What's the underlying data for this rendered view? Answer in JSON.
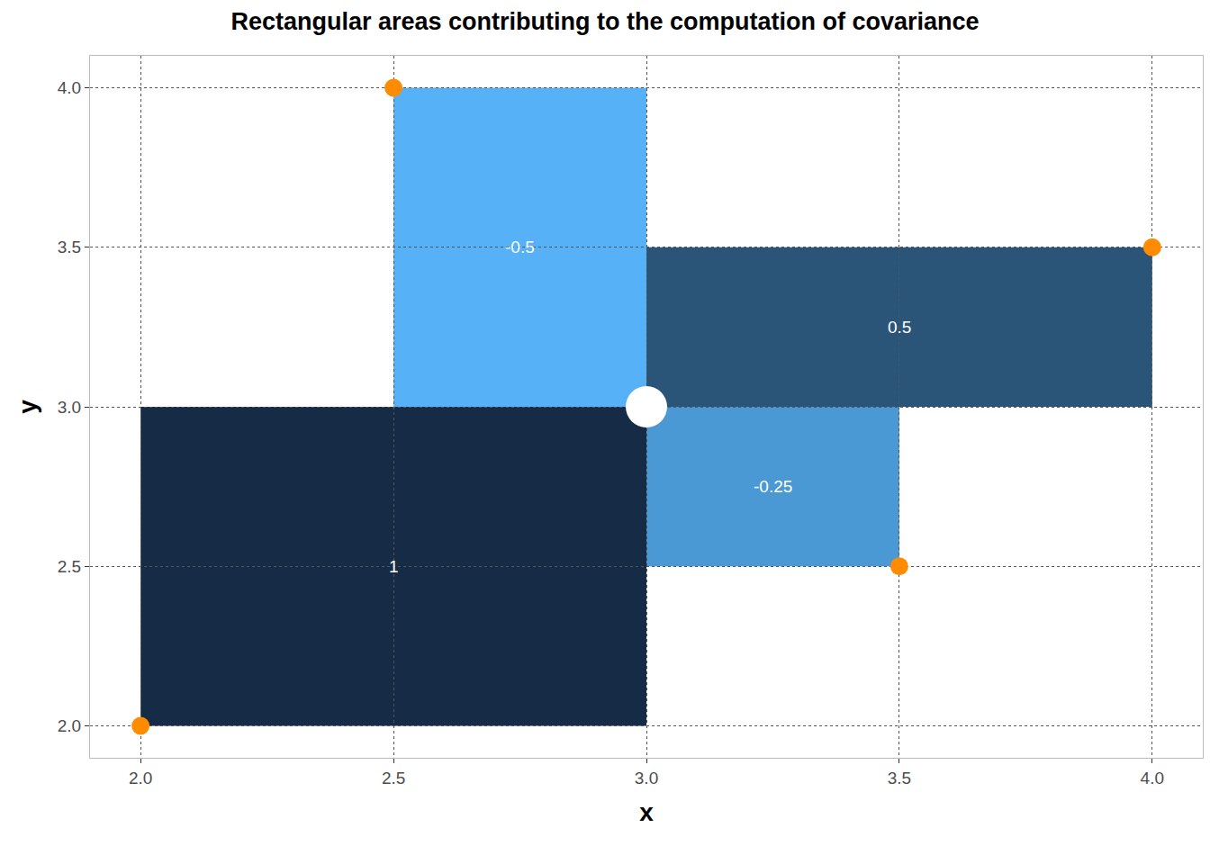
{
  "chart_data": {
    "type": "scatter",
    "title": "Rectangular areas contributing to the computation of covariance",
    "x_label": "x",
    "y_label": "y",
    "x": [
      2,
      2.5,
      3.5,
      4
    ],
    "values": [
      2,
      4,
      2.5,
      3.5
    ],
    "color": "#ff8c00",
    "mean": {
      "x": 3,
      "y": 3,
      "color": "#ffffff"
    },
    "areas": {
      "values": [
        1,
        -0.5,
        -0.25,
        0.5
      ],
      "colors": [
        "#162b45",
        "#56b1f7",
        "#4a98d4",
        "#2a5578"
      ]
    },
    "data_labels": true,
    "xlim": [
      1.9,
      4.1
    ],
    "ylim": [
      1.9,
      4.1
    ],
    "xticks": [
      2,
      2.5,
      3,
      3.5,
      4
    ],
    "yticks": [
      2,
      2.5,
      3,
      3.5,
      4
    ],
    "grid": true
  }
}
